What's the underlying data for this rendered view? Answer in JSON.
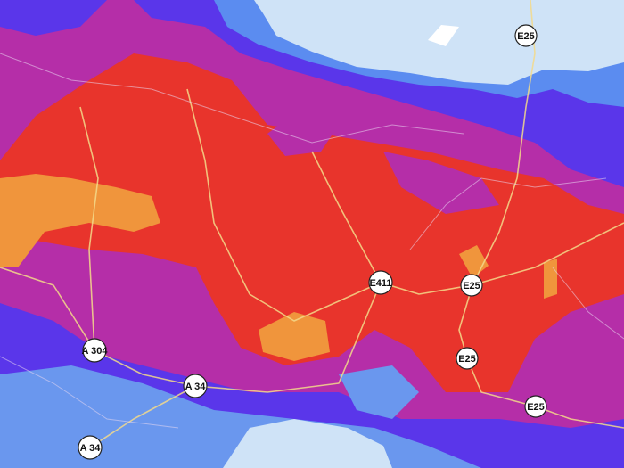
{
  "road_labels": [
    "E25",
    "E411",
    "E25",
    "E25",
    "E25",
    "A 304",
    "A 34",
    "A 34"
  ]
}
